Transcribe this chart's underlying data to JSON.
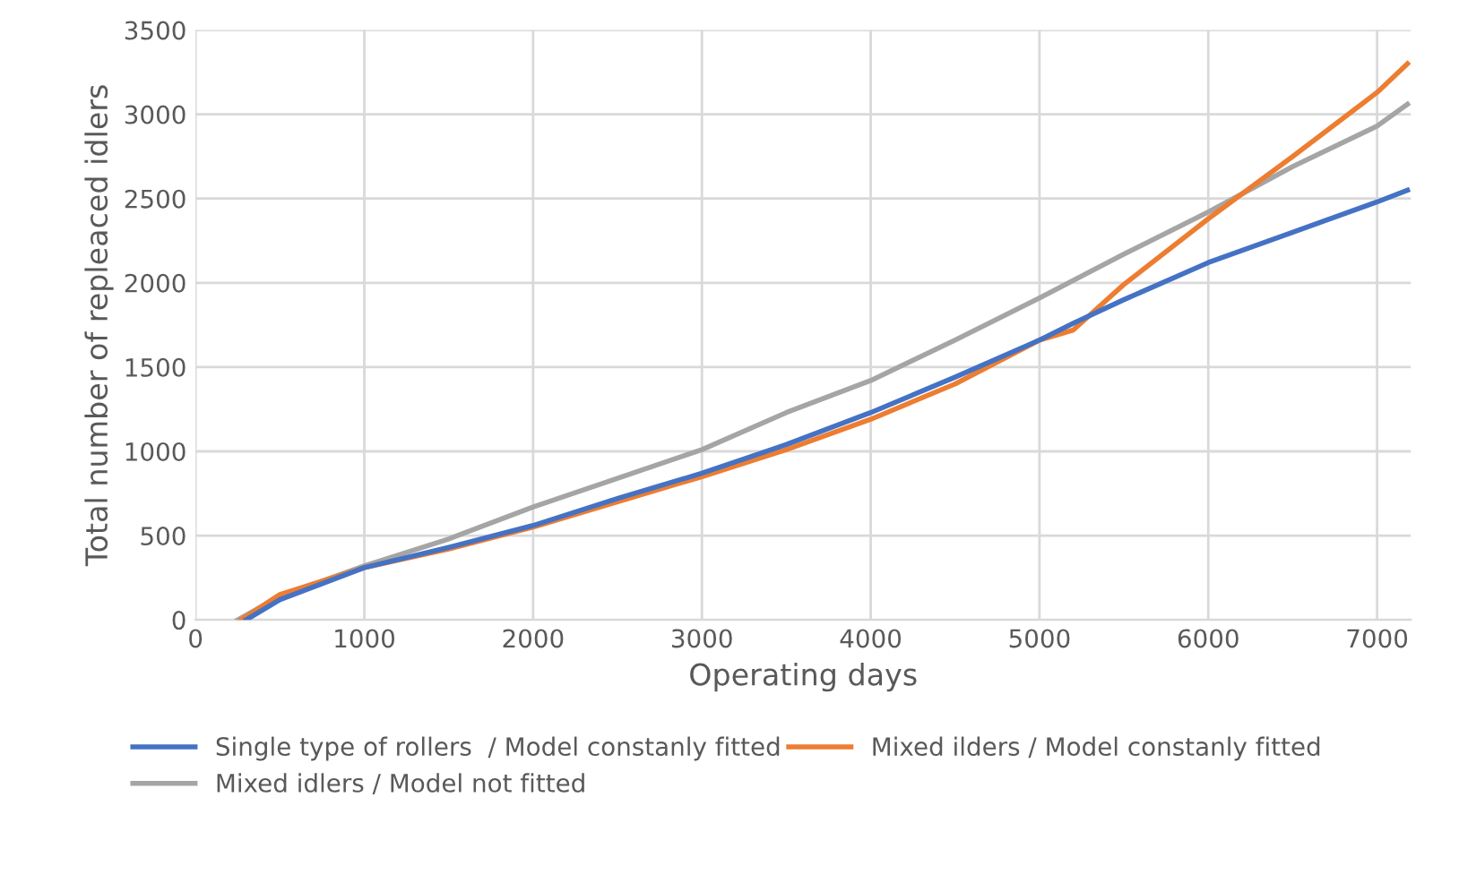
{
  "chart_data": {
    "type": "line",
    "xlabel": "Operating days",
    "ylabel": "Total number of repleaced idlers",
    "xlim": [
      0,
      7200
    ],
    "xticks": [
      0,
      1000,
      2000,
      3000,
      4000,
      5000,
      6000,
      7000
    ],
    "ylim": [
      0,
      3500
    ],
    "yticks": [
      0,
      500,
      1000,
      1500,
      2000,
      2500,
      3000,
      3500
    ],
    "grid": true,
    "legend": "bottom",
    "marker": "none",
    "line_style": "solid",
    "series": [
      {
        "name": "Single type of rollers  / Model constanly fitted",
        "color": "#4472c4",
        "x": [
          300,
          500,
          1000,
          1500,
          2000,
          2500,
          3000,
          3500,
          4000,
          4500,
          5000,
          5200,
          5500,
          6000,
          6500,
          7000,
          7180
        ],
        "values": [
          0,
          120,
          310,
          430,
          560,
          720,
          870,
          1040,
          1230,
          1440,
          1660,
          1760,
          1900,
          2120,
          2300,
          2480,
          2550
        ]
      },
      {
        "name": "Mixed ilders / Model constanly fitted",
        "color": "#ed7d31",
        "x": [
          270,
          500,
          1000,
          1500,
          2000,
          2500,
          3000,
          3500,
          4000,
          4500,
          5000,
          5200,
          5500,
          6000,
          6500,
          7000,
          7180
        ],
        "values": [
          0,
          150,
          310,
          420,
          550,
          700,
          850,
          1010,
          1190,
          1400,
          1660,
          1720,
          1990,
          2380,
          2750,
          3130,
          3300
        ]
      },
      {
        "name": "Mixed idlers / Model not fitted",
        "color": "#a5a5a5",
        "x": [
          250,
          500,
          1000,
          1500,
          2000,
          2500,
          3000,
          3500,
          4000,
          4500,
          5000,
          5500,
          6000,
          6500,
          7000,
          7180
        ],
        "values": [
          0,
          140,
          320,
          480,
          670,
          840,
          1010,
          1230,
          1420,
          1660,
          1910,
          2170,
          2420,
          2690,
          2930,
          3060
        ]
      }
    ]
  }
}
